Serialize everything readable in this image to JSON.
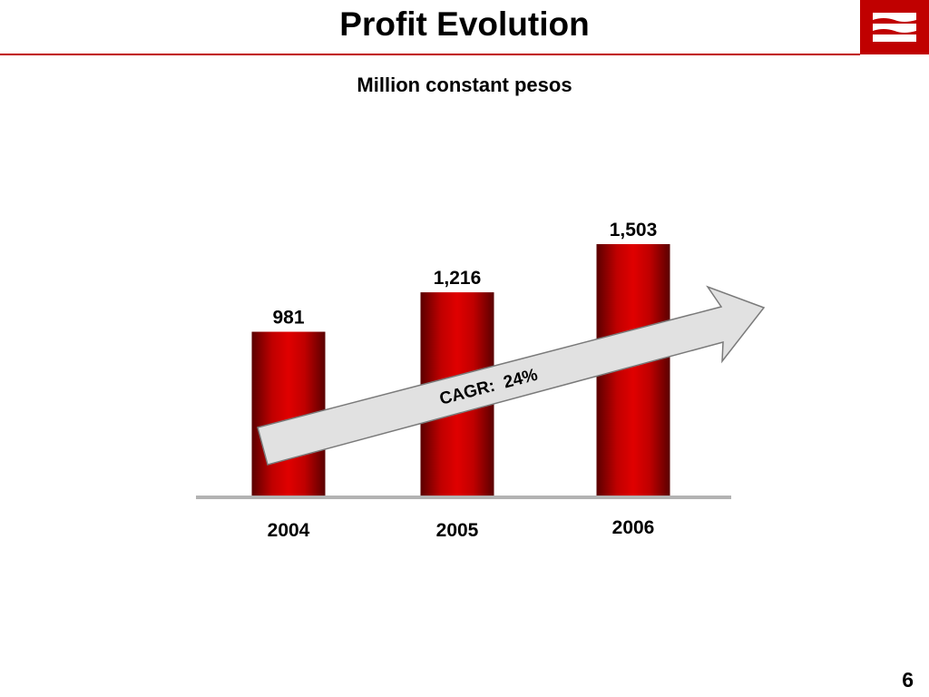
{
  "header": {
    "title": "Profit Evolution",
    "subtitle": "Million constant pesos",
    "brand_color": "#c00000"
  },
  "logo": {
    "icon": "bank-logo-icon"
  },
  "chart_data": {
    "type": "bar",
    "categories": [
      "2004",
      "2005",
      "2006"
    ],
    "values": [
      981,
      1216,
      1503
    ],
    "data_labels": [
      "981",
      "1,216",
      "1,503"
    ],
    "title": "Profit Evolution",
    "subtitle": "Million constant pesos",
    "ylim": [
      0,
      1503
    ],
    "grid": false,
    "bar_color": "#c00000",
    "annotation": {
      "type": "arrow",
      "text": "CAGR:  24%"
    }
  },
  "footer": {
    "page_number": "6"
  }
}
